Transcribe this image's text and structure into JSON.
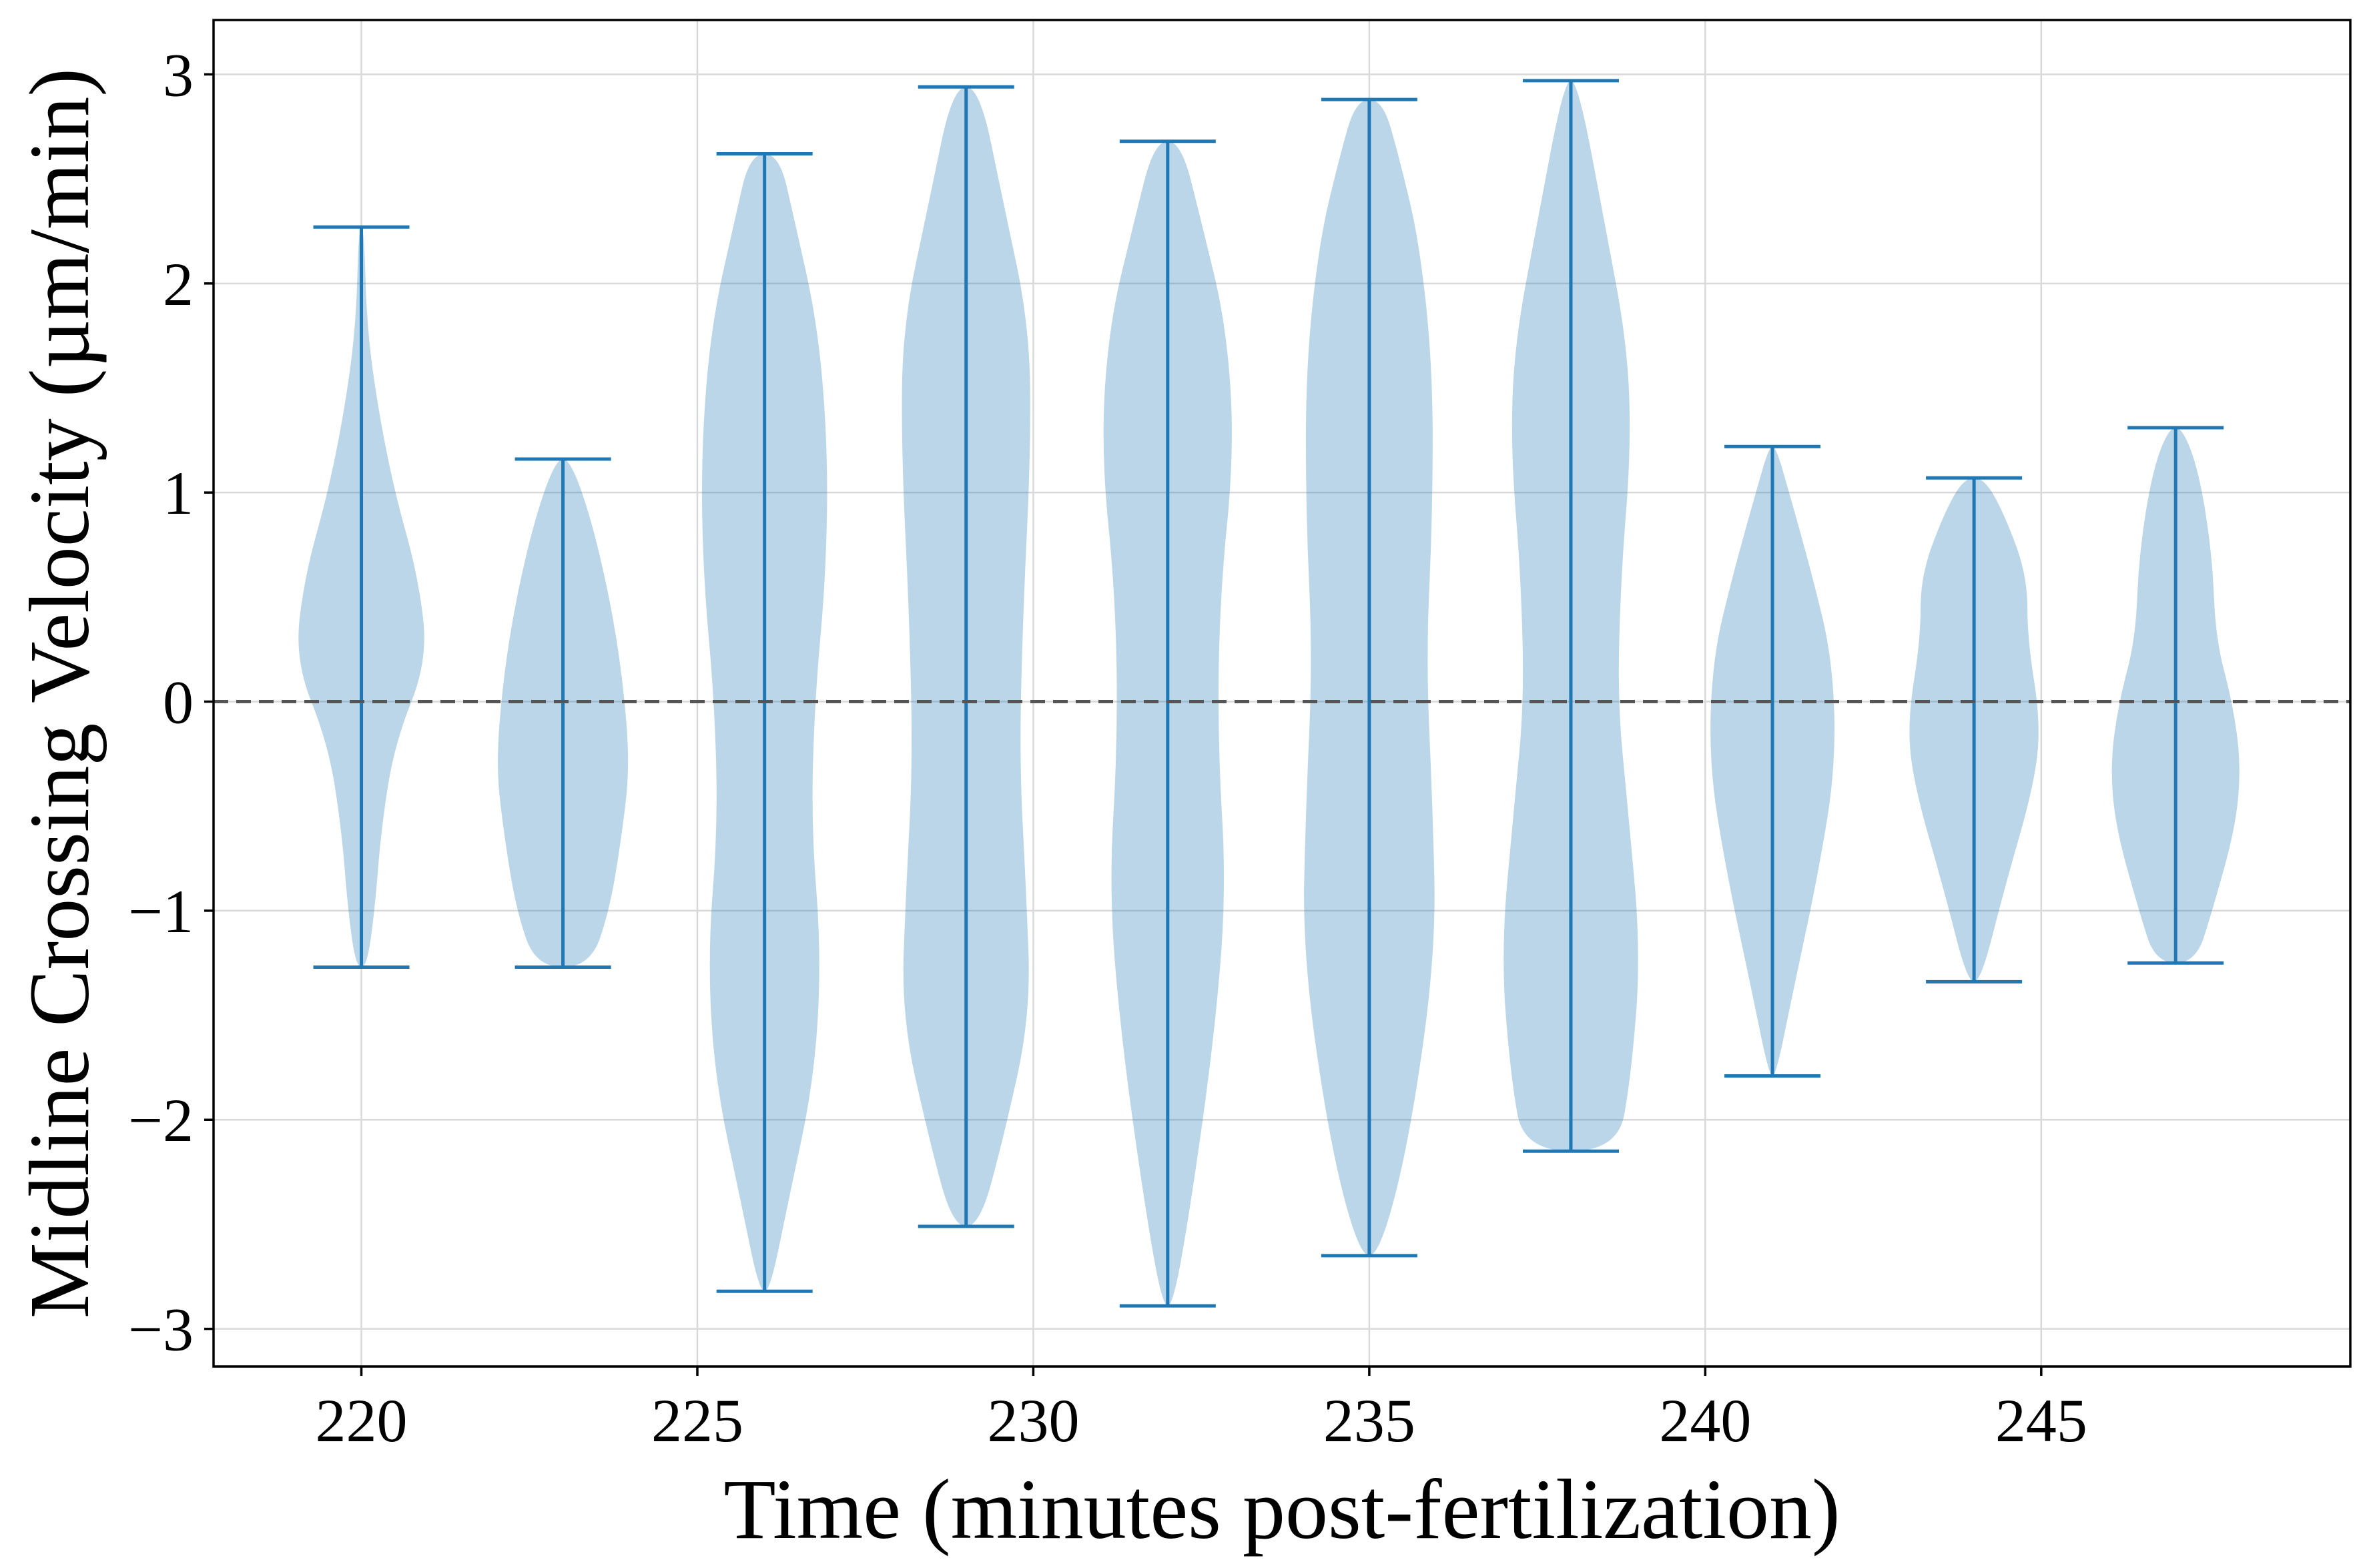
{
  "chart_data": {
    "type": "violin",
    "title": "",
    "xlabel": "Time (minutes post-fertilization)",
    "ylabel": "Midline Crossing Velocity (µm/min)",
    "xlim": [
      217.8,
      249.6
    ],
    "ylim": [
      -3.18,
      3.26
    ],
    "xticks": [
      220,
      225,
      230,
      235,
      240,
      245
    ],
    "yticks": [
      -3,
      -2,
      -1,
      0,
      1,
      2,
      3
    ],
    "ytick_labels": [
      "−3",
      "−2",
      "−1",
      "0",
      "1",
      "2",
      "3"
    ],
    "grid": true,
    "reference_line": {
      "y": 0,
      "style": "dashed",
      "color": "#555555"
    },
    "violin_color": "#1f77b4",
    "violins": [
      {
        "x": 220,
        "min": -1.27,
        "max": 2.27,
        "density": [
          [
            -1.27,
            0.08
          ],
          [
            -1.0,
            0.2
          ],
          [
            -0.6,
            0.3
          ],
          [
            -0.2,
            0.5
          ],
          [
            0.2,
            1.0
          ],
          [
            0.6,
            0.85
          ],
          [
            1.0,
            0.5
          ],
          [
            1.4,
            0.25
          ],
          [
            1.8,
            0.08
          ],
          [
            2.27,
            0.04
          ]
        ]
      },
      {
        "x": 223,
        "min": -1.27,
        "max": 1.16,
        "density": [
          [
            -1.27,
            0.4
          ],
          [
            -1.0,
            0.7
          ],
          [
            -0.6,
            0.9
          ],
          [
            -0.3,
            1.0
          ],
          [
            0.1,
            0.9
          ],
          [
            0.5,
            0.7
          ],
          [
            0.9,
            0.4
          ],
          [
            1.16,
            0.1
          ]
        ]
      },
      {
        "x": 226,
        "min": -2.82,
        "max": 2.62,
        "density": [
          [
            -2.82,
            0.08
          ],
          [
            -2.4,
            0.35
          ],
          [
            -1.8,
            0.75
          ],
          [
            -1.2,
            0.85
          ],
          [
            -0.6,
            0.7
          ],
          [
            0.0,
            0.75
          ],
          [
            0.6,
            0.92
          ],
          [
            1.2,
            0.95
          ],
          [
            1.8,
            0.8
          ],
          [
            2.3,
            0.45
          ],
          [
            2.62,
            0.22
          ]
        ]
      },
      {
        "x": 229,
        "min": -2.51,
        "max": 2.94,
        "density": [
          [
            -2.51,
            0.2
          ],
          [
            -2.1,
            0.55
          ],
          [
            -1.5,
            0.97
          ],
          [
            -0.9,
            0.9
          ],
          [
            -0.3,
            0.8
          ],
          [
            0.4,
            0.85
          ],
          [
            1.2,
            0.97
          ],
          [
            1.8,
            0.95
          ],
          [
            2.4,
            0.55
          ],
          [
            2.94,
            0.2
          ]
        ]
      },
      {
        "x": 232,
        "min": -2.89,
        "max": 2.68,
        "density": [
          [
            -2.89,
            0.08
          ],
          [
            -2.4,
            0.35
          ],
          [
            -1.6,
            0.7
          ],
          [
            -0.9,
            0.88
          ],
          [
            -0.2,
            0.75
          ],
          [
            0.5,
            0.78
          ],
          [
            1.2,
            1.0
          ],
          [
            1.8,
            0.88
          ],
          [
            2.3,
            0.5
          ],
          [
            2.68,
            0.2
          ]
        ]
      },
      {
        "x": 235,
        "min": -2.65,
        "max": 2.88,
        "density": [
          [
            -2.65,
            0.15
          ],
          [
            -2.1,
            0.6
          ],
          [
            -1.2,
            1.0
          ],
          [
            -0.5,
            0.95
          ],
          [
            0.2,
            0.85
          ],
          [
            0.9,
            0.95
          ],
          [
            1.6,
            0.95
          ],
          [
            2.2,
            0.75
          ],
          [
            2.6,
            0.45
          ],
          [
            2.88,
            0.2
          ]
        ]
      },
      {
        "x": 238,
        "min": -2.15,
        "max": 2.97,
        "density": [
          [
            -2.15,
            0.7
          ],
          [
            -1.8,
            0.9
          ],
          [
            -1.2,
            1.05
          ],
          [
            -0.5,
            0.85
          ],
          [
            0.0,
            0.7
          ],
          [
            0.6,
            0.75
          ],
          [
            1.2,
            0.9
          ],
          [
            1.7,
            0.85
          ],
          [
            2.3,
            0.5
          ],
          [
            2.97,
            0.1
          ]
        ]
      },
      {
        "x": 241,
        "min": -1.79,
        "max": 1.22,
        "density": [
          [
            -1.79,
            0.05
          ],
          [
            -1.4,
            0.3
          ],
          [
            -0.8,
            0.7
          ],
          [
            -0.3,
            0.95
          ],
          [
            0.2,
            0.9
          ],
          [
            0.6,
            0.6
          ],
          [
            1.0,
            0.25
          ],
          [
            1.22,
            0.05
          ]
        ]
      },
      {
        "x": 244,
        "min": -1.34,
        "max": 1.07,
        "density": [
          [
            -1.34,
            0.1
          ],
          [
            -0.9,
            0.45
          ],
          [
            -0.4,
            0.9
          ],
          [
            -0.1,
            1.0
          ],
          [
            0.3,
            0.8
          ],
          [
            0.6,
            0.8
          ],
          [
            0.9,
            0.45
          ],
          [
            1.07,
            0.15
          ]
        ]
      },
      {
        "x": 247,
        "min": -1.25,
        "max": 1.31,
        "density": [
          [
            -1.25,
            0.3
          ],
          [
            -1.0,
            0.55
          ],
          [
            -0.6,
            0.9
          ],
          [
            -0.3,
            0.98
          ],
          [
            0.0,
            0.85
          ],
          [
            0.3,
            0.6
          ],
          [
            0.7,
            0.55
          ],
          [
            1.1,
            0.35
          ],
          [
            1.31,
            0.1
          ]
        ]
      }
    ]
  }
}
